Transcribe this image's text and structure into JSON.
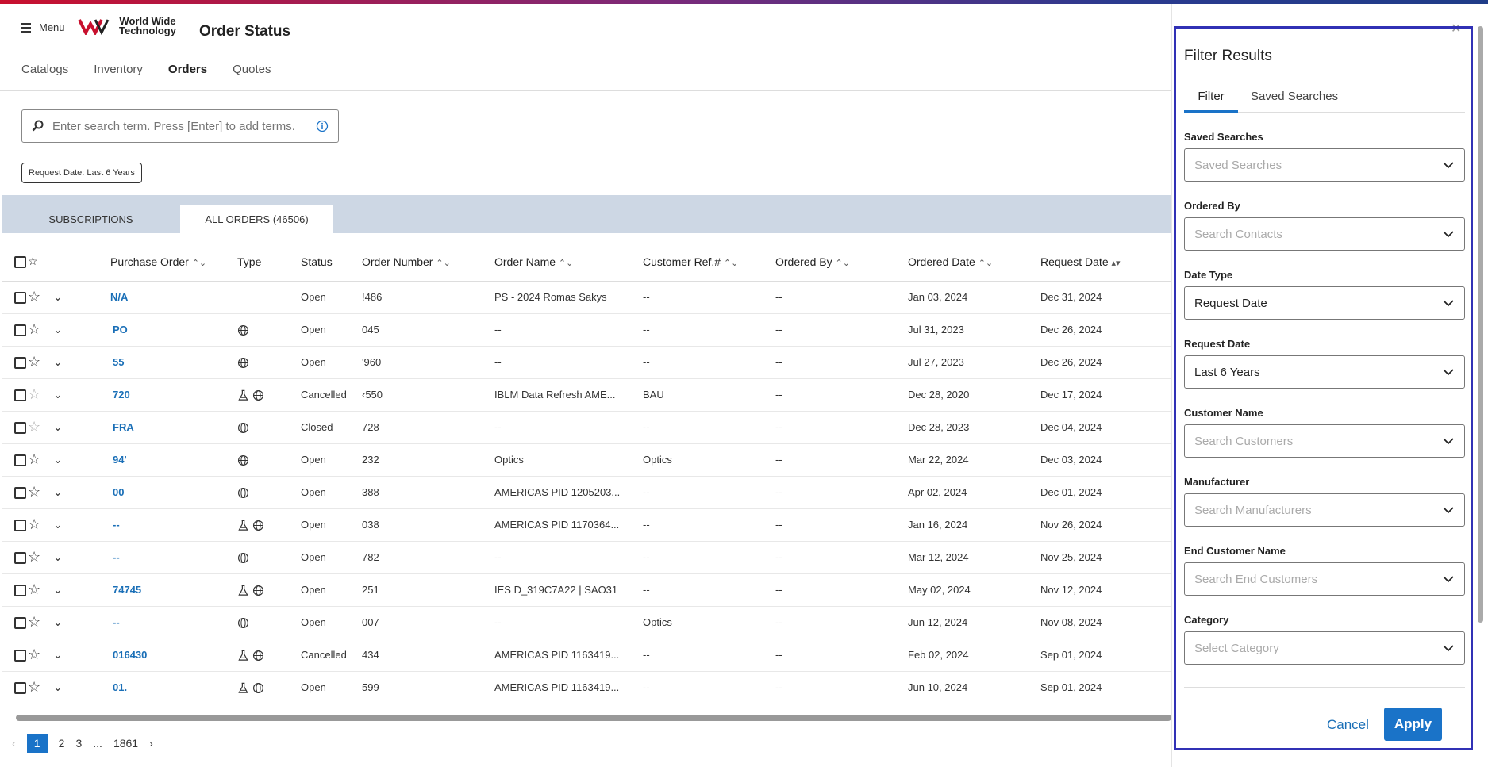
{
  "header": {
    "menu_label": "Menu",
    "logo_text": "World Wide Technology",
    "app_title": "Order Status"
  },
  "nav": [
    "Catalogs",
    "Inventory",
    "Orders",
    "Quotes"
  ],
  "search": {
    "placeholder": "Enter search term. Press [Enter] to add terms."
  },
  "chip": "Request Date: Last 6 Years",
  "tabs": {
    "subscriptions": "SUBSCRIPTIONS",
    "all_orders": "ALL ORDERS (46506)"
  },
  "columns": [
    "Purchase Order",
    "Type",
    "Status",
    "Order Number",
    "Order Name",
    "Customer Ref.#",
    "Ordered By",
    "Ordered Date",
    "Request Date"
  ],
  "rows": [
    {
      "po": "N/A",
      "type": [],
      "status": "Open",
      "order_no": "!486",
      "order_name": "PS - 2024 Romas Sakys",
      "cust_ref": "--",
      "ordered_by": "--",
      "ordered_date": "Jan 03, 2024",
      "request_date": "Dec 31, 2024",
      "star": "dark"
    },
    {
      "po": "PO",
      "type": [
        "globe"
      ],
      "status": "Open",
      "order_no": "045",
      "order_name": "--",
      "cust_ref": "--",
      "ordered_by": "--",
      "ordered_date": "Jul 31, 2023",
      "request_date": "Dec 26, 2024",
      "star": "dark"
    },
    {
      "po": "55",
      "type": [
        "globe"
      ],
      "status": "Open",
      "order_no": "'960",
      "order_name": "--",
      "cust_ref": "--",
      "ordered_by": "--",
      "ordered_date": "Jul 27, 2023",
      "request_date": "Dec 26, 2024",
      "star": "dark"
    },
    {
      "po": "720",
      "type": [
        "flask",
        "globe"
      ],
      "status": "Cancelled",
      "order_no": "‹550",
      "order_name": "IBLM Data Refresh AME...",
      "cust_ref": "BAU",
      "ordered_by": "--",
      "ordered_date": "Dec 28, 2020",
      "request_date": "Dec 17, 2024",
      "star": "light"
    },
    {
      "po": "FRA",
      "type": [
        "globe"
      ],
      "status": "Closed",
      "order_no": "728",
      "order_name": "--",
      "cust_ref": "--",
      "ordered_by": "--",
      "ordered_date": "Dec 28, 2023",
      "request_date": "Dec 04, 2024",
      "star": "light"
    },
    {
      "po": "94'",
      "type": [
        "globe"
      ],
      "status": "Open",
      "order_no": "232",
      "order_name": "Optics",
      "cust_ref": "Optics",
      "ordered_by": "--",
      "ordered_date": "Mar 22, 2024",
      "request_date": "Dec 03, 2024",
      "star": "dark"
    },
    {
      "po": "00",
      "type": [
        "globe"
      ],
      "status": "Open",
      "order_no": "388",
      "order_name": "AMERICAS PID 1205203...",
      "cust_ref": "--",
      "ordered_by": "--",
      "ordered_date": "Apr 02, 2024",
      "request_date": "Dec 01, 2024",
      "star": "dark"
    },
    {
      "po": "--",
      "type": [
        "flask",
        "globe"
      ],
      "status": "Open",
      "order_no": "038",
      "order_name": "AMERICAS PID 1170364...",
      "cust_ref": "--",
      "ordered_by": "--",
      "ordered_date": "Jan 16, 2024",
      "request_date": "Nov 26, 2024",
      "star": "dark"
    },
    {
      "po": "--",
      "type": [
        "globe"
      ],
      "status": "Open",
      "order_no": "782",
      "order_name": "--",
      "cust_ref": "--",
      "ordered_by": "--",
      "ordered_date": "Mar 12, 2024",
      "request_date": "Nov 25, 2024",
      "star": "dark"
    },
    {
      "po": "74745",
      "type": [
        "flask",
        "globe"
      ],
      "status": "Open",
      "order_no": "251",
      "order_name": "IES D_319C7A22 | SAO31",
      "cust_ref": "--",
      "ordered_by": "--",
      "ordered_date": "May 02, 2024",
      "request_date": "Nov 12, 2024",
      "star": "dark"
    },
    {
      "po": "--",
      "type": [
        "globe"
      ],
      "status": "Open",
      "order_no": "007",
      "order_name": "--",
      "cust_ref": "Optics",
      "ordered_by": "--",
      "ordered_date": "Jun 12, 2024",
      "request_date": "Nov 08, 2024",
      "star": "dark"
    },
    {
      "po": "016430",
      "type": [
        "flask",
        "globe"
      ],
      "status": "Cancelled",
      "order_no": "434",
      "order_name": "AMERICAS PID 1163419...",
      "cust_ref": "--",
      "ordered_by": "--",
      "ordered_date": "Feb 02, 2024",
      "request_date": "Sep 01, 2024",
      "star": "dark"
    },
    {
      "po": "01.",
      "type": [
        "flask",
        "globe"
      ],
      "status": "Open",
      "order_no": "599",
      "order_name": "AMERICAS PID 1163419...",
      "cust_ref": "--",
      "ordered_by": "--",
      "ordered_date": "Jun 10, 2024",
      "request_date": "Sep 01, 2024",
      "star": "dark"
    }
  ],
  "pager": {
    "pages": [
      "1",
      "2",
      "3",
      "...",
      "1861"
    ],
    "current": "1"
  },
  "filter_panel": {
    "title": "Filter Results",
    "tabs": [
      "Filter",
      "Saved Searches"
    ],
    "fields": [
      {
        "label": "Saved Searches",
        "placeholder": "Saved Searches",
        "value": ""
      },
      {
        "label": "Ordered By",
        "placeholder": "Search Contacts",
        "value": ""
      },
      {
        "label": "Date Type",
        "placeholder": "",
        "value": "Request Date"
      },
      {
        "label": "Request Date",
        "placeholder": "",
        "value": "Last 6 Years"
      },
      {
        "label": "Customer Name",
        "placeholder": "Search Customers",
        "value": ""
      },
      {
        "label": "Manufacturer",
        "placeholder": "Search Manufacturers",
        "value": ""
      },
      {
        "label": "End Customer Name",
        "placeholder": "Search End Customers",
        "value": ""
      },
      {
        "label": "Category",
        "placeholder": "Select Category",
        "value": ""
      }
    ],
    "cancel_label": "Cancel",
    "apply_label": "Apply"
  },
  "colors": {
    "accent": "#1a73c8",
    "link": "#1a6fb7",
    "highlight_frame": "#3131b5",
    "tabs_bg": "#cdd7e4"
  }
}
